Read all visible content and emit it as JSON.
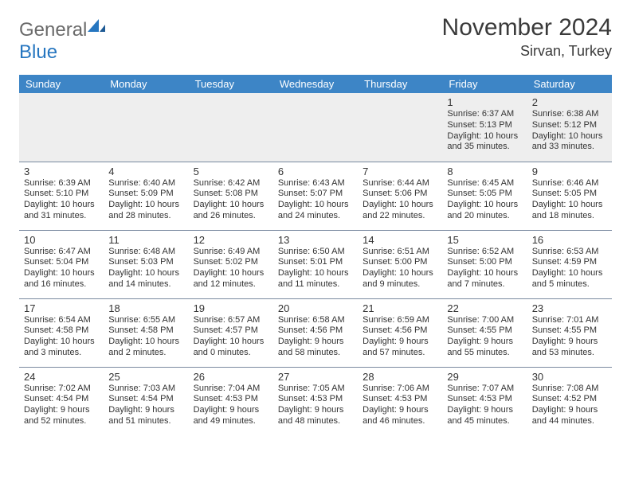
{
  "logo": {
    "general": "General",
    "blue": "Blue"
  },
  "title": "November 2024",
  "location": "Sirvan, Turkey",
  "colors": {
    "header_bg": "#3d85c6",
    "header_text": "#ffffff",
    "logo_gray": "#6a6a6a",
    "logo_blue": "#2676c0",
    "border": "#7a8aa0",
    "empty_bg": "#eeeeee",
    "text": "#333333"
  },
  "day_headers": [
    "Sunday",
    "Monday",
    "Tuesday",
    "Wednesday",
    "Thursday",
    "Friday",
    "Saturday"
  ],
  "weeks": [
    {
      "empty": true,
      "days": [
        null,
        null,
        null,
        null,
        null,
        {
          "n": "1",
          "sr": "Sunrise: 6:37 AM",
          "ss": "Sunset: 5:13 PM",
          "d1": "Daylight: 10 hours",
          "d2": "and 35 minutes."
        },
        {
          "n": "2",
          "sr": "Sunrise: 6:38 AM",
          "ss": "Sunset: 5:12 PM",
          "d1": "Daylight: 10 hours",
          "d2": "and 33 minutes."
        }
      ]
    },
    {
      "days": [
        {
          "n": "3",
          "sr": "Sunrise: 6:39 AM",
          "ss": "Sunset: 5:10 PM",
          "d1": "Daylight: 10 hours",
          "d2": "and 31 minutes."
        },
        {
          "n": "4",
          "sr": "Sunrise: 6:40 AM",
          "ss": "Sunset: 5:09 PM",
          "d1": "Daylight: 10 hours",
          "d2": "and 28 minutes."
        },
        {
          "n": "5",
          "sr": "Sunrise: 6:42 AM",
          "ss": "Sunset: 5:08 PM",
          "d1": "Daylight: 10 hours",
          "d2": "and 26 minutes."
        },
        {
          "n": "6",
          "sr": "Sunrise: 6:43 AM",
          "ss": "Sunset: 5:07 PM",
          "d1": "Daylight: 10 hours",
          "d2": "and 24 minutes."
        },
        {
          "n": "7",
          "sr": "Sunrise: 6:44 AM",
          "ss": "Sunset: 5:06 PM",
          "d1": "Daylight: 10 hours",
          "d2": "and 22 minutes."
        },
        {
          "n": "8",
          "sr": "Sunrise: 6:45 AM",
          "ss": "Sunset: 5:05 PM",
          "d1": "Daylight: 10 hours",
          "d2": "and 20 minutes."
        },
        {
          "n": "9",
          "sr": "Sunrise: 6:46 AM",
          "ss": "Sunset: 5:05 PM",
          "d1": "Daylight: 10 hours",
          "d2": "and 18 minutes."
        }
      ]
    },
    {
      "days": [
        {
          "n": "10",
          "sr": "Sunrise: 6:47 AM",
          "ss": "Sunset: 5:04 PM",
          "d1": "Daylight: 10 hours",
          "d2": "and 16 minutes."
        },
        {
          "n": "11",
          "sr": "Sunrise: 6:48 AM",
          "ss": "Sunset: 5:03 PM",
          "d1": "Daylight: 10 hours",
          "d2": "and 14 minutes."
        },
        {
          "n": "12",
          "sr": "Sunrise: 6:49 AM",
          "ss": "Sunset: 5:02 PM",
          "d1": "Daylight: 10 hours",
          "d2": "and 12 minutes."
        },
        {
          "n": "13",
          "sr": "Sunrise: 6:50 AM",
          "ss": "Sunset: 5:01 PM",
          "d1": "Daylight: 10 hours",
          "d2": "and 11 minutes."
        },
        {
          "n": "14",
          "sr": "Sunrise: 6:51 AM",
          "ss": "Sunset: 5:00 PM",
          "d1": "Daylight: 10 hours",
          "d2": "and 9 minutes."
        },
        {
          "n": "15",
          "sr": "Sunrise: 6:52 AM",
          "ss": "Sunset: 5:00 PM",
          "d1": "Daylight: 10 hours",
          "d2": "and 7 minutes."
        },
        {
          "n": "16",
          "sr": "Sunrise: 6:53 AM",
          "ss": "Sunset: 4:59 PM",
          "d1": "Daylight: 10 hours",
          "d2": "and 5 minutes."
        }
      ]
    },
    {
      "days": [
        {
          "n": "17",
          "sr": "Sunrise: 6:54 AM",
          "ss": "Sunset: 4:58 PM",
          "d1": "Daylight: 10 hours",
          "d2": "and 3 minutes."
        },
        {
          "n": "18",
          "sr": "Sunrise: 6:55 AM",
          "ss": "Sunset: 4:58 PM",
          "d1": "Daylight: 10 hours",
          "d2": "and 2 minutes."
        },
        {
          "n": "19",
          "sr": "Sunrise: 6:57 AM",
          "ss": "Sunset: 4:57 PM",
          "d1": "Daylight: 10 hours",
          "d2": "and 0 minutes."
        },
        {
          "n": "20",
          "sr": "Sunrise: 6:58 AM",
          "ss": "Sunset: 4:56 PM",
          "d1": "Daylight: 9 hours",
          "d2": "and 58 minutes."
        },
        {
          "n": "21",
          "sr": "Sunrise: 6:59 AM",
          "ss": "Sunset: 4:56 PM",
          "d1": "Daylight: 9 hours",
          "d2": "and 57 minutes."
        },
        {
          "n": "22",
          "sr": "Sunrise: 7:00 AM",
          "ss": "Sunset: 4:55 PM",
          "d1": "Daylight: 9 hours",
          "d2": "and 55 minutes."
        },
        {
          "n": "23",
          "sr": "Sunrise: 7:01 AM",
          "ss": "Sunset: 4:55 PM",
          "d1": "Daylight: 9 hours",
          "d2": "and 53 minutes."
        }
      ]
    },
    {
      "days": [
        {
          "n": "24",
          "sr": "Sunrise: 7:02 AM",
          "ss": "Sunset: 4:54 PM",
          "d1": "Daylight: 9 hours",
          "d2": "and 52 minutes."
        },
        {
          "n": "25",
          "sr": "Sunrise: 7:03 AM",
          "ss": "Sunset: 4:54 PM",
          "d1": "Daylight: 9 hours",
          "d2": "and 51 minutes."
        },
        {
          "n": "26",
          "sr": "Sunrise: 7:04 AM",
          "ss": "Sunset: 4:53 PM",
          "d1": "Daylight: 9 hours",
          "d2": "and 49 minutes."
        },
        {
          "n": "27",
          "sr": "Sunrise: 7:05 AM",
          "ss": "Sunset: 4:53 PM",
          "d1": "Daylight: 9 hours",
          "d2": "and 48 minutes."
        },
        {
          "n": "28",
          "sr": "Sunrise: 7:06 AM",
          "ss": "Sunset: 4:53 PM",
          "d1": "Daylight: 9 hours",
          "d2": "and 46 minutes."
        },
        {
          "n": "29",
          "sr": "Sunrise: 7:07 AM",
          "ss": "Sunset: 4:53 PM",
          "d1": "Daylight: 9 hours",
          "d2": "and 45 minutes."
        },
        {
          "n": "30",
          "sr": "Sunrise: 7:08 AM",
          "ss": "Sunset: 4:52 PM",
          "d1": "Daylight: 9 hours",
          "d2": "and 44 minutes."
        }
      ]
    }
  ]
}
